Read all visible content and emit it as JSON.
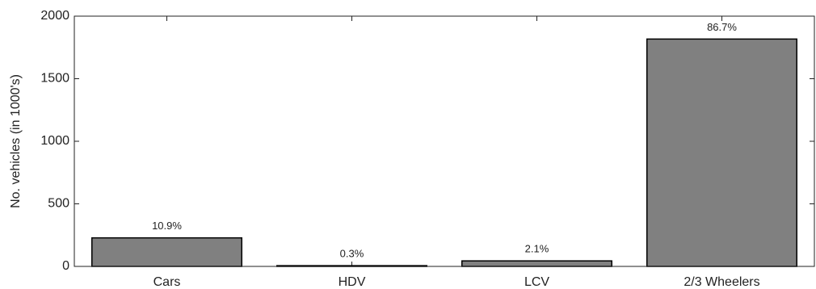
{
  "chart_data": {
    "type": "bar",
    "y_label": "No. vehicles (in 1000's)",
    "categories": [
      "Cars",
      "HDV",
      "LCV",
      "2/3 Wheelers"
    ],
    "values": [
      228,
      6,
      44,
      1817
    ],
    "bar_labels": [
      "10.9%",
      "0.3%",
      "2.1%",
      "86.7%"
    ],
    "color": "#808080",
    "ylim": [
      0,
      2000
    ],
    "yticks": [
      0,
      500,
      1000,
      1500,
      2000
    ],
    "grid": false
  }
}
